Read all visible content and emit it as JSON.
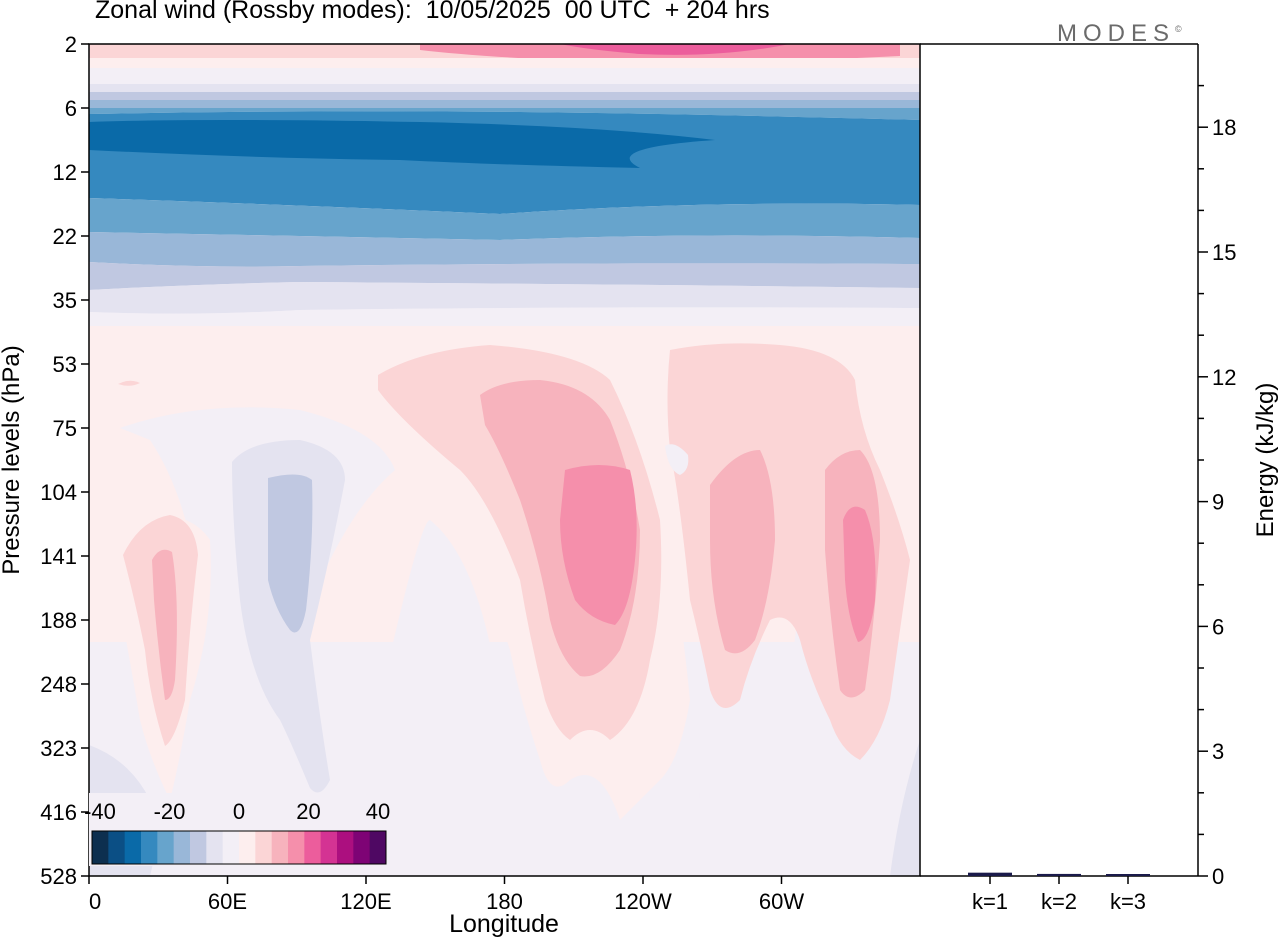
{
  "title": "Zonal wind (Rossby modes):  10/05/2025  00 UTC  + 204 hrs",
  "logo": {
    "text": "MODES",
    "mark": "©"
  },
  "chart_data": [
    {
      "type": "heatmap",
      "title": "Zonal wind (Rossby modes):  10/05/2025  00 UTC  + 204 hrs",
      "xlabel": "Longitude",
      "ylabel": "Pressure levels (hPa)",
      "x_ticks": [
        "0",
        "60E",
        "120E",
        "180",
        "120W",
        "60W"
      ],
      "x_tick_values": [
        0,
        60,
        120,
        180,
        240,
        300
      ],
      "xlim": [
        0,
        360
      ],
      "y_ticks": [
        "2",
        "6",
        "12",
        "22",
        "35",
        "53",
        "75",
        "104",
        "141",
        "188",
        "248",
        "323",
        "416",
        "528"
      ],
      "y_scale": "pressure levels (inverted, top = 2 hPa)",
      "grid": false,
      "colorbar": {
        "tick_labels": [
          "-40",
          "-20",
          "0",
          "20",
          "40"
        ],
        "placement": "bottom-left inside plot",
        "colors": [
          "#0d2f4f",
          "#0b4f85",
          "#0a6aa8",
          "#3589bf",
          "#67a4cc",
          "#99b7d8",
          "#c0c8e1",
          "#e4e3f0",
          "#f3eff6",
          "#fdeeee",
          "#fbd5d6",
          "#f7b3bd",
          "#f58fab",
          "#ec5d9c",
          "#d43393",
          "#ac0f7f",
          "#7e0375",
          "#4f0863"
        ]
      },
      "bands_top_to_bottom": [
        {
          "level": "2 hPa",
          "value": 20,
          "note": "max near 135W"
        },
        {
          "level": "6-10 hPa",
          "value": -35
        },
        {
          "level": "12-22 hPa",
          "value": -25
        },
        {
          "level": "22-35 hPa",
          "value": -10
        },
        {
          "level": "53-528 hPa",
          "value": 5
        }
      ],
      "features": [
        {
          "name": "positive core",
          "lon": 205,
          "level": "141 hPa",
          "value": 20
        },
        {
          "name": "positive core",
          "lon": 335,
          "level": "141 hPa",
          "value": 20
        },
        {
          "name": "positive core",
          "lon": 30,
          "level": "188 hPa",
          "value": 15
        },
        {
          "name": "positive core",
          "lon": 275,
          "level": "141 hPa",
          "value": 15
        },
        {
          "name": "negative core",
          "lon": 85,
          "level": "141 hPa",
          "value": -10
        }
      ]
    },
    {
      "type": "bar",
      "categories": [
        "k=1",
        "k=2",
        "k=3"
      ],
      "values": [
        0.08,
        0.05,
        0.03
      ],
      "ylabel": "Energy (kJ/kg)",
      "y_ticks": [
        "0",
        "3",
        "6",
        "9",
        "12",
        "15",
        "18"
      ],
      "ylim": [
        0,
        20
      ],
      "bar_color": "#1a1a4a"
    }
  ]
}
